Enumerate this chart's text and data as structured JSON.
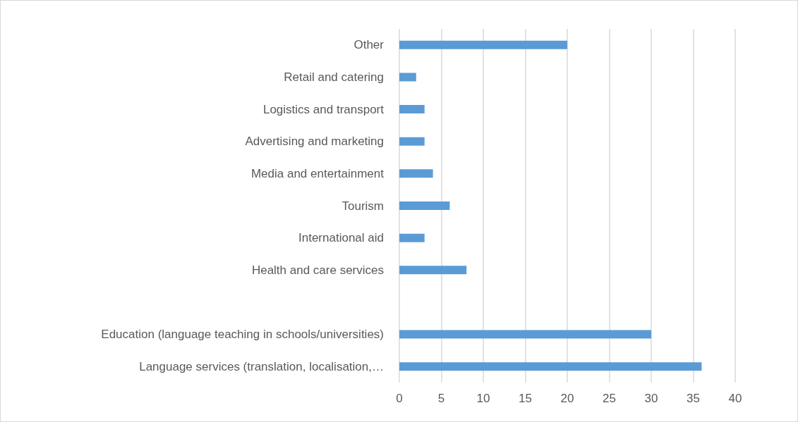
{
  "chart_data": {
    "type": "bar",
    "orientation": "horizontal",
    "categories": [
      "Other",
      "Retail and catering",
      "Logistics and transport",
      "Advertising and marketing",
      "Media and entertainment",
      "Tourism",
      "International aid",
      "Health and care services",
      null,
      "Education (language teaching in schools/universities)",
      "Language services (translation, localisation,…"
    ],
    "values": [
      20,
      2,
      3,
      3,
      4,
      6,
      3,
      8,
      null,
      30,
      36
    ],
    "color": "#5b9bd5",
    "xlim": [
      0,
      40
    ],
    "xticks": [
      0,
      5,
      10,
      15,
      20,
      25,
      30,
      35,
      40
    ],
    "grid": "x"
  }
}
